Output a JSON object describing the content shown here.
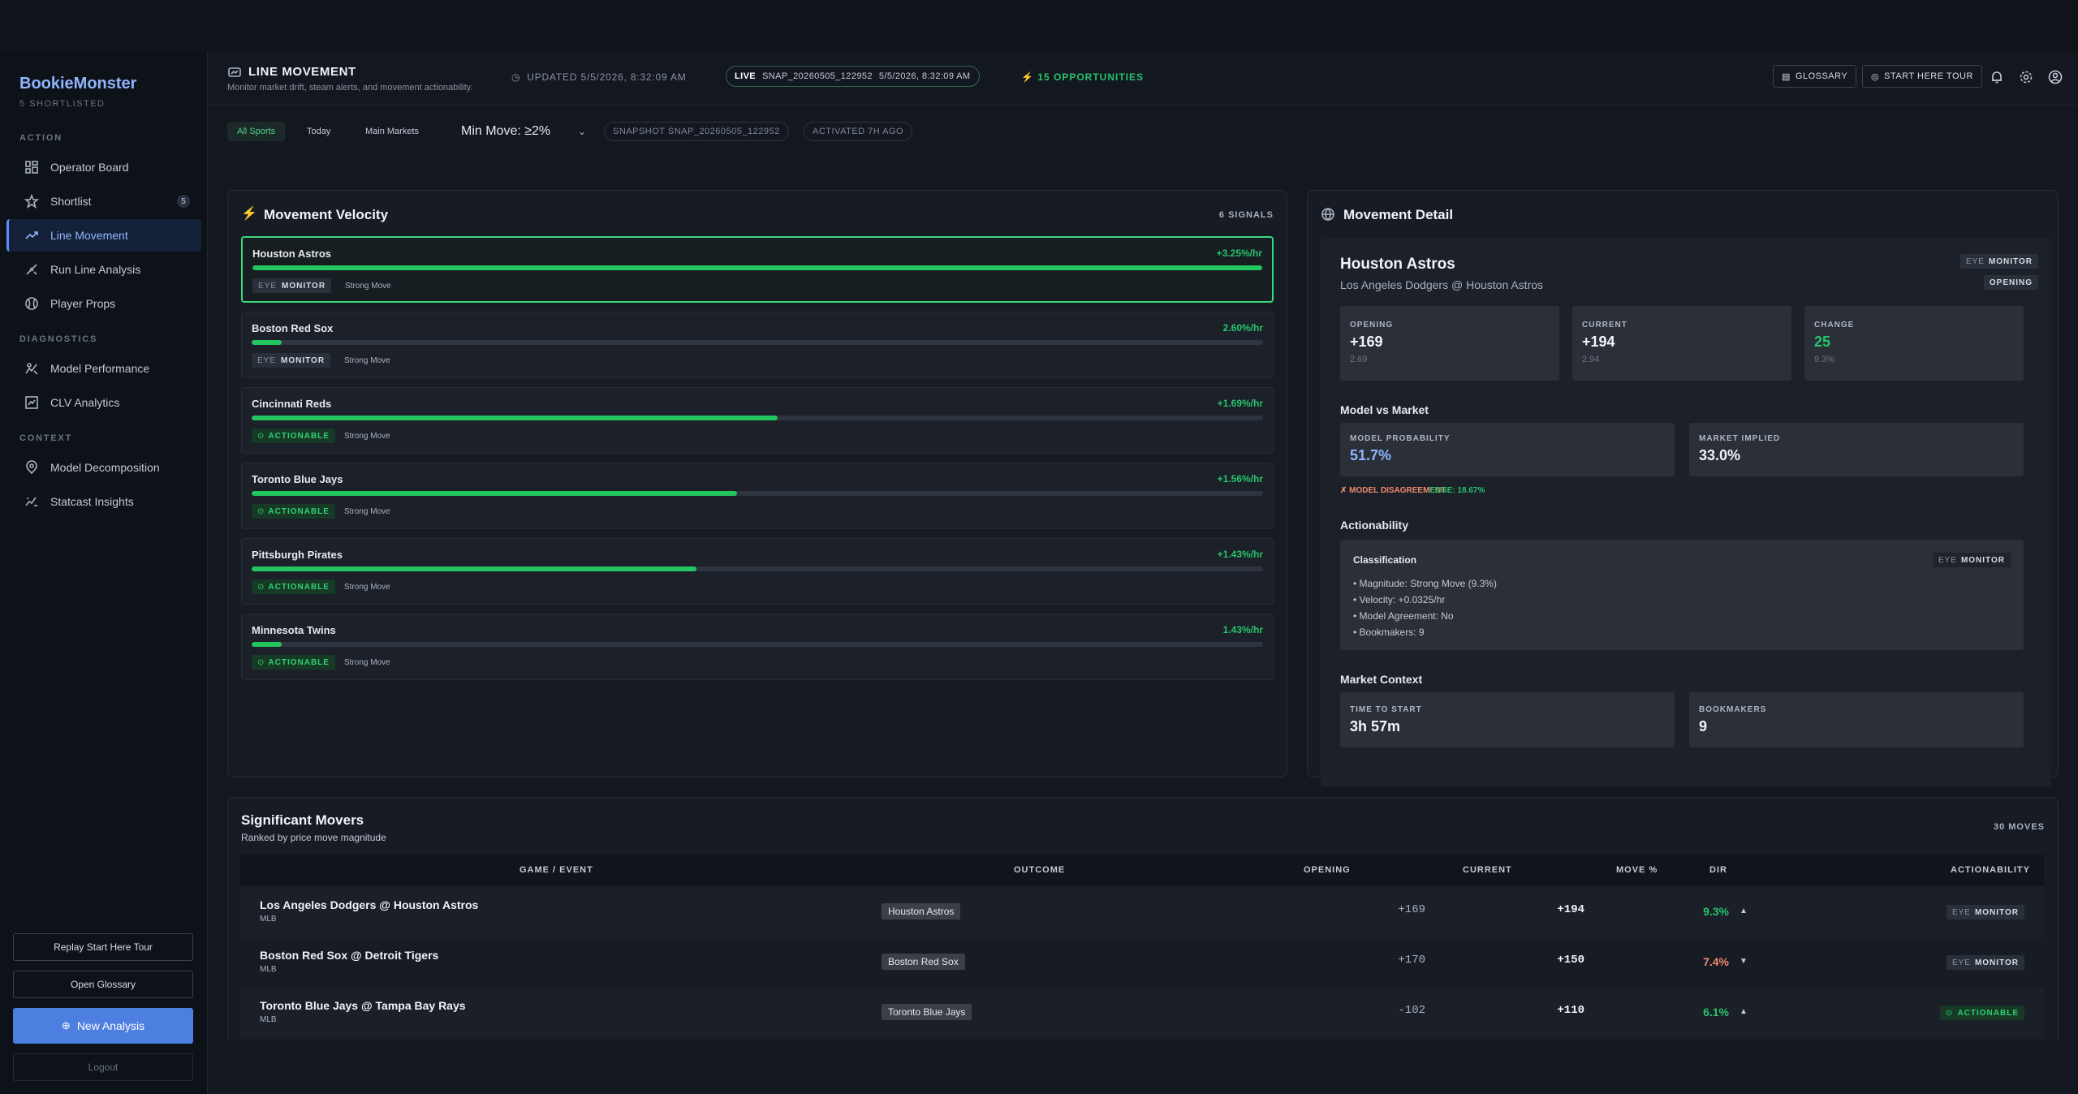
{
  "app": {
    "brand": "BookieMonster",
    "shortlisted": "5 SHORTLISTED"
  },
  "sidebar": {
    "sections": [
      "ACTION",
      "DIAGNOSTICS",
      "CONTEXT"
    ],
    "items": [
      {
        "label": "Operator Board",
        "icon": "grid-icon"
      },
      {
        "label": "Shortlist",
        "icon": "star-icon",
        "badge": "5"
      },
      {
        "label": "Line Movement",
        "icon": "trend-up-icon",
        "active": true
      },
      {
        "label": "Run Line Analysis",
        "icon": "run-line-icon"
      },
      {
        "label": "Player Props",
        "icon": "baseball-icon"
      },
      {
        "label": "Model Performance",
        "icon": "model-performance-icon"
      },
      {
        "label": "CLV Analytics",
        "icon": "clv-chart-icon"
      },
      {
        "label": "Model Decomposition",
        "icon": "decomposition-icon"
      },
      {
        "label": "Statcast Insights",
        "icon": "statcast-icon"
      }
    ],
    "replay_tour": "Replay Start Here Tour",
    "open_glossary": "Open Glossary",
    "new_analysis": "New Analysis",
    "logout": "Logout"
  },
  "header": {
    "title": "LINE MOVEMENT",
    "subtitle": "Monitor market drift, steam alerts, and movement actionability.",
    "updated": "UPDATED 5/5/2026, 8:32:09 AM",
    "live_label": "LIVE",
    "live_snapshot": "SNAP_20260505_122952",
    "live_time": "5/5/2026, 8:32:09 AM",
    "opportunities": "15 OPPORTUNITIES",
    "glossary": "GLOSSARY",
    "start_tour": "START HERE TOUR"
  },
  "filters": {
    "chips": [
      "All Sports",
      "Today",
      "Main Markets"
    ],
    "min_move": "Min Move: ≥2%",
    "snapshot": "SNAPSHOT SNAP_20260505_122952",
    "activated": "ACTIVATED 7H AGO"
  },
  "velocity": {
    "title": "Movement Velocity",
    "signals": "6 SIGNALS",
    "rows": [
      {
        "team": "Houston Astros",
        "rate": "+3.25%/hr",
        "level": 1.0,
        "tag": "MONITOR",
        "eye": "EYE",
        "strength": "Strong Move",
        "actionable": false
      },
      {
        "team": "Boston Red Sox",
        "rate": "2.60%/hr",
        "level": 0.03,
        "tag": "MONITOR",
        "eye": "EYE",
        "strength": "Strong Move",
        "actionable": false
      },
      {
        "team": "Cincinnati Reds",
        "rate": "+1.69%/hr",
        "level": 0.52,
        "tag": "ACTIONABLE",
        "eye": "⊙",
        "strength": "Strong Move",
        "actionable": true
      },
      {
        "team": "Toronto Blue Jays",
        "rate": "+1.56%/hr",
        "level": 0.48,
        "tag": "ACTIONABLE",
        "eye": "⊙",
        "strength": "Strong Move",
        "actionable": true
      },
      {
        "team": "Pittsburgh Pirates",
        "rate": "+1.43%/hr",
        "level": 0.44,
        "tag": "ACTIONABLE",
        "eye": "⊙",
        "strength": "Strong Move",
        "actionable": true
      },
      {
        "team": "Minnesota Twins",
        "rate": "1.43%/hr",
        "level": 0.03,
        "tag": "ACTIONABLE",
        "eye": "⊙",
        "strength": "Strong Move",
        "actionable": true
      }
    ]
  },
  "detail": {
    "title": "Movement Detail",
    "team": "Houston Astros",
    "matchup": "Los Angeles Dodgers @ Houston Astros",
    "status_eye": "EYE",
    "status": "MONITOR",
    "opening_badge": "OPENING",
    "opening_label": "OPENING",
    "opening_value": "+169",
    "opening_sub": "2.69",
    "current_label": "CURRENT",
    "current_value": "+194",
    "current_sub": "2.94",
    "change_label": "CHANGE",
    "change_value": "25",
    "change_sub": "9.3%",
    "model_vs_market": "Model vs Market",
    "model_prob_label": "MODEL PROBABILITY",
    "model_prob": "51.7%",
    "market_implied_label": "MARKET IMPLIED",
    "market_implied": "33.0%",
    "disagreement": "✗ MODEL DISAGREEMENT",
    "edge": "EDGE: 18.67%",
    "actionability": "Actionability",
    "classification": "Classification",
    "bullets": [
      "• Magnitude: Strong Move (9.3%)",
      "• Velocity: +0.0325/hr",
      "• Model Agreement: No",
      "• Bookmakers: 9"
    ],
    "market_context": "Market Context",
    "time_label": "TIME TO START",
    "time_value": "3h 57m",
    "books_label": "BOOKMAKERS",
    "books_value": "9"
  },
  "movers": {
    "title": "Significant Movers",
    "subtitle": "Ranked by price move magnitude",
    "count": "30 MOVES",
    "columns": [
      "GAME / EVENT",
      "OUTCOME",
      "OPENING",
      "CURRENT",
      "MOVE %",
      "DIR",
      "ACTIONABILITY"
    ],
    "rows": [
      {
        "game": "Los Angeles Dodgers @ Houston Astros",
        "league": "MLB",
        "outcome": "Houston Astros",
        "opening": "+169",
        "current": "+194",
        "move": "9.3%",
        "move_color": "#27c46b",
        "dir": "▲",
        "eye": "EYE",
        "action": "MONITOR",
        "actionable": false
      },
      {
        "game": "Boston Red Sox @ Detroit Tigers",
        "league": "MLB",
        "outcome": "Boston Red Sox",
        "opening": "+170",
        "current": "+150",
        "move": "7.4%",
        "move_color": "#f08a6b",
        "dir": "▼",
        "eye": "EYE",
        "action": "MONITOR",
        "actionable": false
      },
      {
        "game": "Toronto Blue Jays @ Tampa Bay Rays",
        "league": "MLB",
        "outcome": "Toronto Blue Jays",
        "opening": "-102",
        "current": "+110",
        "move": "6.1%",
        "move_color": "#27c46b",
        "dir": "▲",
        "eye": "⊙",
        "action": "ACTIONABLE",
        "actionable": true
      }
    ]
  },
  "colors": {
    "accent": "#5b8dff",
    "positive": "#22c55e",
    "negative": "#f08a6b",
    "background": "#131720"
  }
}
